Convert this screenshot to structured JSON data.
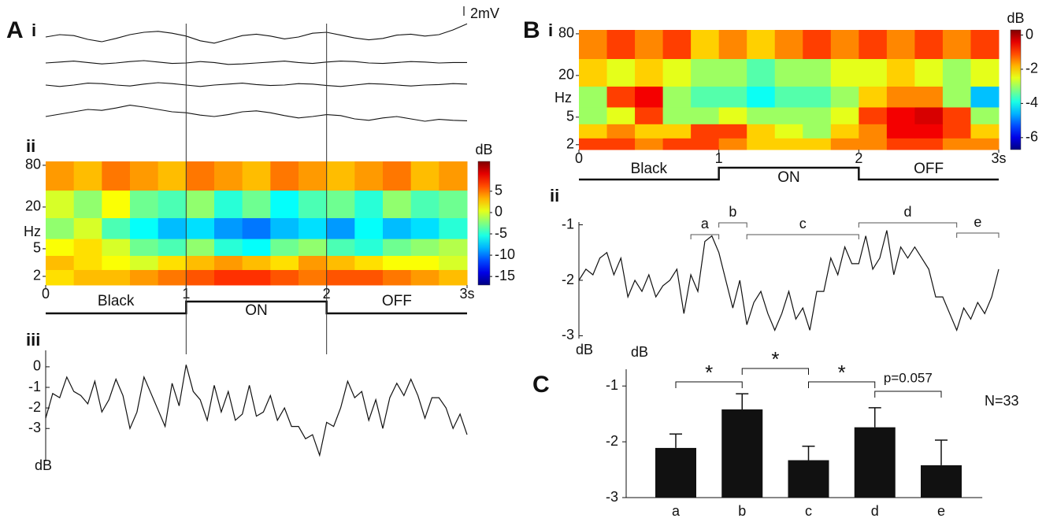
{
  "chart_data": [
    {
      "type": "traces",
      "panel": "A",
      "subpanel": "i",
      "x": [
        0,
        0.1,
        0.2,
        0.3,
        0.4,
        0.5,
        0.6,
        0.7,
        0.8,
        0.9,
        1.0,
        1.1,
        1.2,
        1.3,
        1.4,
        1.5,
        1.6,
        1.7,
        1.8,
        1.9,
        2.0,
        2.1,
        2.2,
        2.3,
        2.4,
        2.5,
        2.6,
        2.7,
        2.8,
        2.9,
        3.0
      ],
      "series": [
        {
          "values": [
            0,
            0.5,
            0.3,
            -0.5,
            -1,
            -0.3,
            0.5,
            1,
            1.2,
            0.8,
            0.2,
            -0.8,
            -1.3,
            -0.5,
            0.3,
            0.6,
            0.2,
            -0.4,
            0,
            0.8,
            1,
            0.4,
            -0.2,
            -0.6,
            -0.3,
            0.4,
            0.6,
            0.2,
            0.5,
            1.5,
            2.8
          ]
        },
        {
          "values": [
            0,
            0.2,
            0.4,
            0.1,
            -0.2,
            0,
            0.3,
            0.5,
            0.2,
            -0.1,
            0,
            0.3,
            0.1,
            -0.3,
            -0.2,
            0,
            0.2,
            0.4,
            0.1,
            -0.1,
            0.2,
            0.4,
            0.3,
            0,
            -0.1,
            0.1,
            0.3,
            0.2,
            0,
            0.1,
            0.1
          ]
        },
        {
          "values": [
            0,
            -0.3,
            0,
            0.4,
            0.3,
            0,
            -0.2,
            0.2,
            0.5,
            0.3,
            0,
            -0.3,
            0,
            0.2,
            0.4,
            0.1,
            -0.1,
            0,
            0.3,
            0.2,
            -0.1,
            -0.3,
            0,
            0.3,
            0.2,
            0,
            -0.2,
            0,
            0.1,
            0.3,
            0.2
          ]
        },
        {
          "values": [
            0,
            0.5,
            1,
            1.5,
            1.3,
            1.8,
            2.4,
            2,
            1.5,
            1,
            0.8,
            0.3,
            0,
            0.4,
            1,
            1.2,
            0.8,
            0.2,
            -0.3,
            0,
            0.4,
            0.2,
            -0.5,
            -0.8,
            -0.3,
            0,
            -0.5,
            -1,
            -0.6,
            -0.8,
            -0.9
          ]
        }
      ],
      "color": "#111111",
      "scalebar": {
        "value": 2,
        "label": "2mV"
      }
    },
    {
      "type": "heatmap",
      "subpanel": "ii",
      "xlim": [
        0,
        3
      ],
      "xticks": [
        0,
        1,
        2,
        {
          "value": 3,
          "label": "3s"
        }
      ],
      "yscale": "log",
      "ybins": [
        1.5,
        2.5,
        4,
        7,
        14,
        35,
        91
      ],
      "yticks": [
        2,
        5,
        20,
        80
      ],
      "ylabel": "Hz",
      "z": [
        [
          2,
          3,
          3,
          4,
          5,
          6,
          7,
          7,
          6,
          5,
          6,
          6,
          5,
          4,
          3
        ],
        [
          3,
          2,
          1,
          0,
          2,
          3,
          4,
          3,
          2,
          4,
          3,
          2,
          1,
          1,
          0
        ],
        [
          1,
          2,
          0,
          -3,
          -4,
          -2,
          -5,
          -6,
          -3,
          -2,
          -4,
          -5,
          -3,
          -2,
          -1
        ],
        [
          -2,
          0,
          -4,
          -6,
          -8,
          -7,
          -9,
          -10,
          -8,
          -7,
          -9,
          -6,
          -8,
          -7,
          -5
        ],
        [
          0,
          -2,
          1,
          -3,
          -4,
          -2,
          -5,
          -3,
          -6,
          -4,
          -3,
          -5,
          -2,
          -4,
          -3
        ],
        [
          4,
          3,
          5,
          4,
          3,
          5,
          4,
          3,
          5,
          4,
          3,
          4,
          5,
          3,
          4
        ]
      ],
      "colormap": "jet",
      "clim": [
        -17,
        12
      ],
      "cticks": [
        5,
        0,
        -5,
        -10,
        -15
      ],
      "clabel": "dB",
      "stimulus_labels": [
        "Black",
        "ON",
        "OFF"
      ],
      "stimulus_edges": [
        1,
        2
      ]
    },
    {
      "type": "line",
      "subpanel": "iii",
      "x": [
        0,
        0.05,
        0.1,
        0.15,
        0.2,
        0.25,
        0.3,
        0.35,
        0.4,
        0.45,
        0.5,
        0.55,
        0.6,
        0.65,
        0.7,
        0.75,
        0.8,
        0.85,
        0.9,
        0.95,
        1.0,
        1.05,
        1.1,
        1.15,
        1.2,
        1.25,
        1.3,
        1.35,
        1.4,
        1.45,
        1.5,
        1.55,
        1.6,
        1.65,
        1.7,
        1.75,
        1.8,
        1.85,
        1.9,
        1.95,
        2.0,
        2.05,
        2.1,
        2.15,
        2.2,
        2.25,
        2.3,
        2.35,
        2.4,
        2.45,
        2.5,
        2.55,
        2.6,
        2.65,
        2.7,
        2.75,
        2.8,
        2.85,
        2.9,
        2.95,
        3.0
      ],
      "values": [
        -2.5,
        -1.3,
        -1.5,
        -0.5,
        -1.2,
        -1.4,
        -1.8,
        -0.7,
        -2.2,
        -1.6,
        -0.6,
        -1.4,
        -3,
        -2.2,
        -0.5,
        -1.3,
        -2.1,
        -2.9,
        -0.8,
        -1.9,
        0.1,
        -1.2,
        -1.6,
        -2.6,
        -0.9,
        -2.2,
        -1.2,
        -2.6,
        -2.3,
        -0.9,
        -2.4,
        -2.2,
        -1.4,
        -2.6,
        -2.0,
        -2.9,
        -2.9,
        -3.5,
        -3.3,
        -4.3,
        -2.7,
        -2.9,
        -2.0,
        -0.7,
        -1.5,
        -1.2,
        -2.6,
        -1.6,
        -3.0,
        -1.5,
        -0.8,
        -1.4,
        -0.6,
        -1.4,
        -2.5,
        -1.5,
        -1.5,
        -2.0,
        -3.0,
        -2.3,
        -3.3
      ],
      "xlim": [
        0,
        3
      ],
      "ylim": [
        -4.6,
        0.8
      ],
      "yticks": [
        0,
        -1,
        -2,
        -3
      ],
      "ylabel": "dB",
      "color": "#111111"
    },
    {
      "type": "heatmap",
      "panel": "B",
      "subpanel": "i",
      "xlim": [
        0,
        3
      ],
      "xticks": [
        0,
        1,
        2,
        {
          "value": 3,
          "label": "3s"
        }
      ],
      "yscale": "log",
      "ybins": [
        1.7,
        2.5,
        4,
        7,
        14,
        35,
        91
      ],
      "yticks": [
        2,
        5,
        20,
        80
      ],
      "ylabel": "Hz",
      "z": [
        [
          -1,
          -1,
          -1.5,
          -1,
          -1,
          -1.5,
          -2,
          -2,
          -2,
          -1.5,
          -1.5,
          -1,
          -1,
          -1.5,
          -1.5
        ],
        [
          -2,
          -1.5,
          -2,
          -2,
          -1,
          -1,
          -2,
          -2.5,
          -3,
          -2,
          -1.5,
          -0.5,
          -0.5,
          -1,
          -2
        ],
        [
          -3,
          -2.5,
          -1,
          -3,
          -3,
          -2.5,
          -3,
          -3,
          -3,
          -2.5,
          -1,
          -0.5,
          -0.3,
          -1,
          -3
        ],
        [
          -3,
          -1,
          -0.5,
          -3,
          -3.5,
          -3.5,
          -4,
          -3.5,
          -3.5,
          -3,
          -2,
          -1.5,
          -1.5,
          -3,
          -4.5
        ],
        [
          -2,
          -2.5,
          -2,
          -2.5,
          -3,
          -3,
          -3.5,
          -3,
          -3,
          -2.5,
          -2.5,
          -2,
          -2.5,
          -3,
          -2.5
        ],
        [
          -1.5,
          -1,
          -1.5,
          -1,
          -2,
          -1.5,
          -2,
          -1.5,
          -1,
          -1.5,
          -1,
          -1.5,
          -1,
          -1.5,
          -1
        ]
      ],
      "colormap": "jet",
      "clim": [
        -6.7,
        0.3
      ],
      "cticks": [
        0,
        -2,
        -4,
        -6
      ],
      "clabel": "dB",
      "stimulus_labels": [
        "Black",
        "ON",
        "OFF"
      ],
      "stimulus_edges": [
        1,
        2
      ]
    },
    {
      "type": "line",
      "subpanel": "ii",
      "x": [
        0,
        0.05,
        0.1,
        0.15,
        0.2,
        0.25,
        0.3,
        0.35,
        0.4,
        0.45,
        0.5,
        0.55,
        0.6,
        0.65,
        0.7,
        0.75,
        0.8,
        0.85,
        0.9,
        0.95,
        1.0,
        1.05,
        1.1,
        1.15,
        1.2,
        1.25,
        1.3,
        1.35,
        1.4,
        1.45,
        1.5,
        1.55,
        1.6,
        1.65,
        1.7,
        1.75,
        1.8,
        1.85,
        1.9,
        1.95,
        2.0,
        2.05,
        2.1,
        2.15,
        2.2,
        2.25,
        2.3,
        2.35,
        2.4,
        2.45,
        2.5,
        2.55,
        2.6,
        2.65,
        2.7,
        2.75,
        2.8,
        2.85,
        2.9,
        2.95,
        3.0
      ],
      "values": [
        -2.0,
        -1.8,
        -1.9,
        -1.6,
        -1.5,
        -1.9,
        -1.6,
        -2.3,
        -2.0,
        -2.2,
        -1.9,
        -2.3,
        -2.1,
        -2.0,
        -1.8,
        -2.6,
        -1.9,
        -2.2,
        -1.3,
        -1.2,
        -1.5,
        -2.0,
        -2.5,
        -2.0,
        -2.8,
        -2.4,
        -2.2,
        -2.6,
        -2.9,
        -2.6,
        -2.2,
        -2.7,
        -2.5,
        -2.9,
        -2.2,
        -2.2,
        -1.6,
        -1.9,
        -1.4,
        -1.7,
        -1.7,
        -1.2,
        -1.8,
        -1.6,
        -1.1,
        -1.9,
        -1.4,
        -1.6,
        -1.4,
        -1.6,
        -1.8,
        -2.3,
        -2.3,
        -2.6,
        -2.9,
        -2.5,
        -2.7,
        -2.4,
        -2.6,
        -2.3,
        -1.8
      ],
      "xlim": [
        0,
        3
      ],
      "ylim": [
        -3.05,
        -0.95
      ],
      "yticks": [
        -1,
        -2,
        -3
      ],
      "ylabel": "dB",
      "color": "#111111",
      "segments": [
        {
          "label": "a",
          "x": [
            0.8,
            1.0
          ]
        },
        {
          "label": "b",
          "x": [
            1.0,
            1.2
          ]
        },
        {
          "label": "c",
          "x": [
            1.2,
            2.0
          ]
        },
        {
          "label": "d",
          "x": [
            2.0,
            2.7
          ]
        },
        {
          "label": "e",
          "x": [
            2.7,
            3.0
          ]
        }
      ]
    },
    {
      "type": "bar",
      "panel": "C",
      "categories": [
        "a",
        "b",
        "c",
        "d",
        "e"
      ],
      "values": [
        -2.11,
        -1.42,
        -2.33,
        -1.74,
        -2.42
      ],
      "errors": [
        0.25,
        0.28,
        0.25,
        0.35,
        0.45
      ],
      "color": "#111111",
      "ylim": [
        -3,
        -0.7
      ],
      "yticks": [
        -1,
        -2,
        -3
      ],
      "ylabel": "dB",
      "brackets": [
        {
          "text": "*",
          "from": "a",
          "to": "b"
        },
        {
          "text": "*",
          "from": "b",
          "to": "c"
        },
        {
          "text": "*",
          "from": "c",
          "to": "d"
        },
        {
          "text": "p=0.057",
          "from": "d",
          "to": "e"
        }
      ],
      "annotation": "N=33"
    }
  ]
}
